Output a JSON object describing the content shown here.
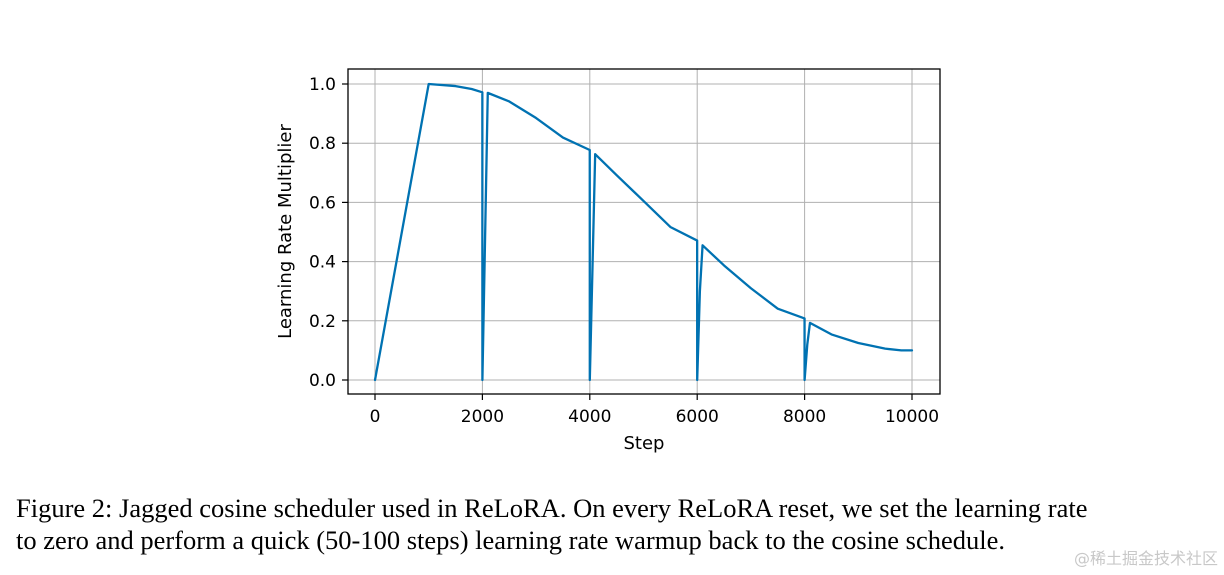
{
  "chart_data": {
    "type": "line",
    "title": "",
    "xlabel": "Step",
    "ylabel": "Learning Rate Multiplier",
    "xlim": [
      -500,
      10500
    ],
    "ylim": [
      -0.05,
      1.05
    ],
    "x_ticks": [
      0,
      2000,
      4000,
      6000,
      8000,
      10000
    ],
    "x_tick_labels": [
      "0",
      "2000",
      "4000",
      "6000",
      "8000",
      "10000"
    ],
    "y_ticks": [
      0.0,
      0.2,
      0.4,
      0.6,
      0.8,
      1.0
    ],
    "y_tick_labels": [
      "0.0",
      "0.2",
      "0.4",
      "0.6",
      "0.8",
      "1.0"
    ],
    "grid": true,
    "legend": false,
    "series": [
      {
        "color": "#0072b2",
        "x": [
          0,
          1000,
          1500,
          1800,
          1999,
          2000,
          2050,
          2100,
          2500,
          3000,
          3500,
          3999,
          4000,
          4050,
          4100,
          4500,
          5000,
          5500,
          5999,
          6000,
          6050,
          6100,
          6500,
          7000,
          7500,
          7999,
          8000,
          8050,
          8100,
          8500,
          9000,
          9500,
          9800,
          10000
        ],
        "values": [
          0.0,
          1.0,
          0.993,
          0.983,
          0.972,
          0.0,
          0.48,
          0.97,
          0.941,
          0.885,
          0.819,
          0.777,
          0.0,
          0.38,
          0.763,
          0.692,
          0.605,
          0.517,
          0.471,
          0.0,
          0.3,
          0.455,
          0.387,
          0.31,
          0.241,
          0.208,
          0.0,
          0.12,
          0.193,
          0.154,
          0.125,
          0.106,
          0.1,
          0.1
        ]
      }
    ]
  },
  "caption": {
    "line1": "Figure 2: Jagged cosine scheduler used in ReLoRA. On every ReLoRA reset, we set the learning rate",
    "line2": "to zero and perform a quick (50-100 steps) learning rate warmup back to the cosine schedule."
  },
  "watermark": "@稀土掘金技术社区"
}
